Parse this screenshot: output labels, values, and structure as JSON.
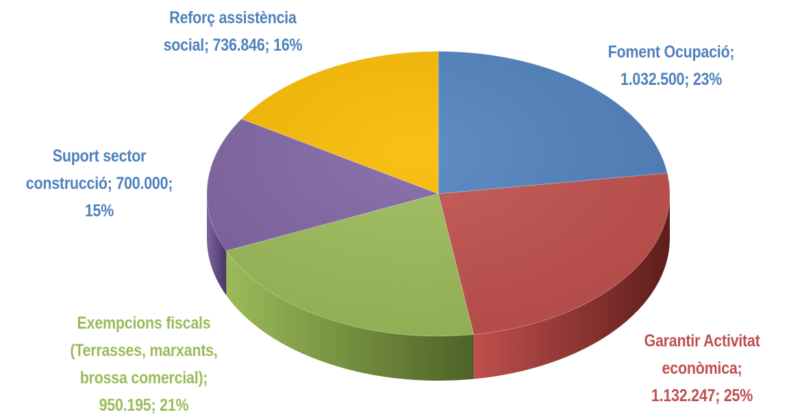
{
  "chart_data": {
    "type": "pie",
    "title": "",
    "slices": [
      {
        "label": "Foment Ocupació",
        "value": 1032500,
        "percent": 23,
        "color": "#4F81BD",
        "dark": "#2c4a6e",
        "text": "Foment Ocupació;\n1.032.500; 23%"
      },
      {
        "label": "Garantir Activitat econòmica",
        "value": 1132247,
        "percent": 25,
        "color": "#C0504D",
        "dark": "#5e1d1b",
        "text": "Garantir Activitat\neconòmica;\n1.132.247; 25%"
      },
      {
        "label": "Exempcions fiscals (Terrasses, marxants, brossa comercial)",
        "value": 950195,
        "percent": 21,
        "color": "#9BBB59",
        "dark": "#4d6226",
        "text": "Exempcions fiscals\n(Terrasses, marxants,\nbrossa comercial);\n950.195; 21%"
      },
      {
        "label": "Suport sector construcció",
        "value": 700000,
        "percent": 15,
        "color": "#8064A2",
        "dark": "#4a3465",
        "text": "Suport sector\nconstrucció; 700.000;\n15%"
      },
      {
        "label": "Reforç assistència social",
        "value": 736846,
        "percent": 16,
        "color": "#F9BA00",
        "dark": "#9a6e00",
        "text": "Reforç assistència\nsocial; 736.846; 16%"
      }
    ],
    "label_colors": [
      "#4F81BD",
      "#C0504D",
      "#9BBB59",
      "#4F81BD",
      "#4F81BD"
    ]
  }
}
